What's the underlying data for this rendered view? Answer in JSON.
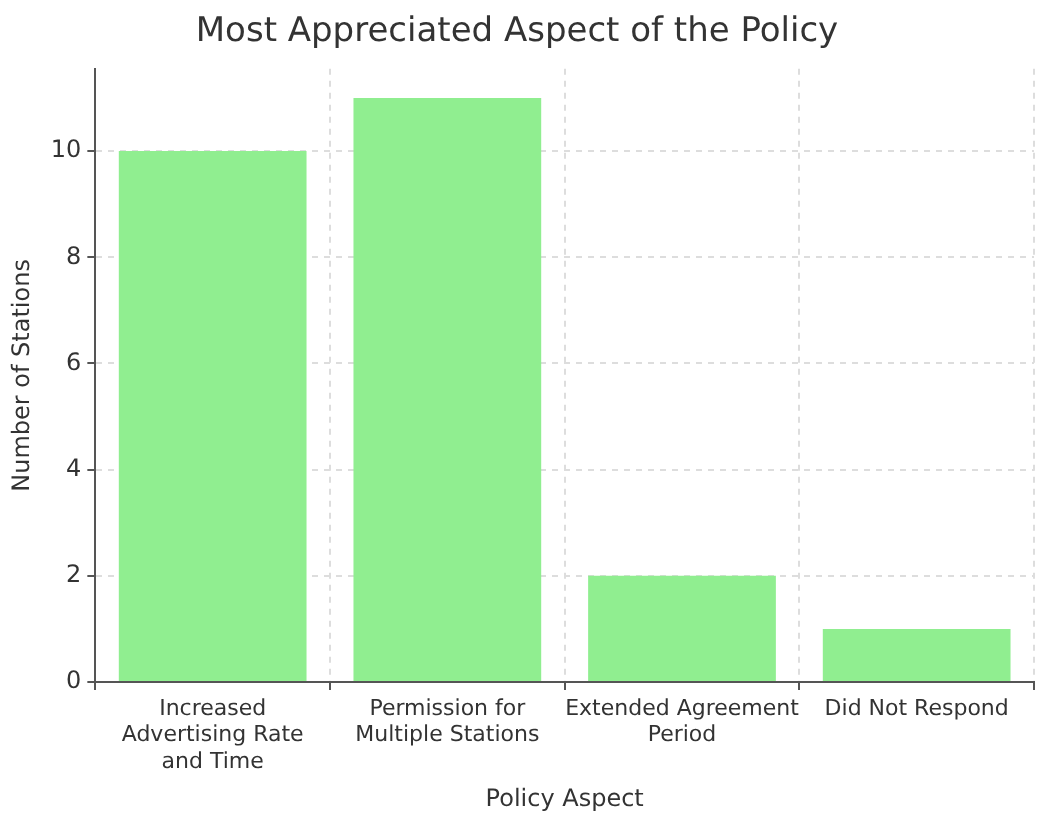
{
  "chart_data": {
    "type": "bar",
    "title": "Most Appreciated Aspect of the Policy",
    "xlabel": "Policy Aspect",
    "ylabel": "Number of Stations",
    "categories": [
      "Increased Advertising Rate and Time",
      "Permission for Multiple Stations",
      "Extended Agreement Period",
      "Did Not Respond"
    ],
    "values": [
      10,
      11,
      2,
      1
    ],
    "color": "#90ee90",
    "ylim": [
      0,
      11.55
    ],
    "yticks": [
      0,
      2,
      4,
      6,
      8,
      10
    ],
    "grid": true,
    "legend": false
  }
}
